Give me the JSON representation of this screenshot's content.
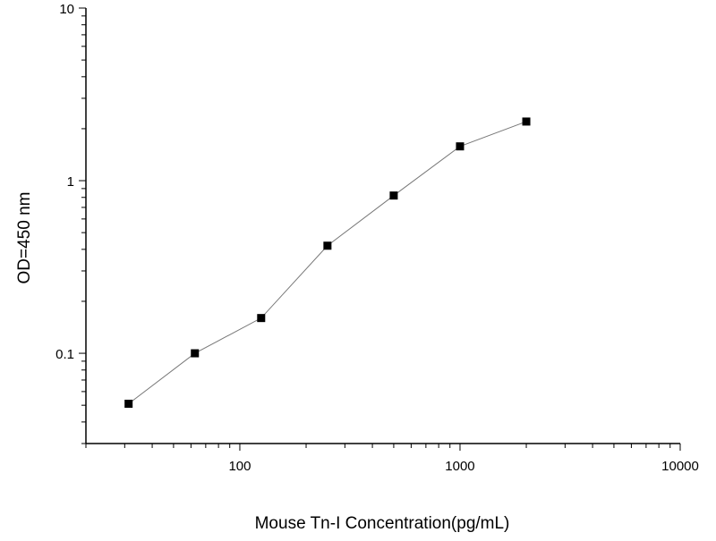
{
  "chart_data": {
    "type": "line",
    "title": "",
    "xlabel": "Mouse Tn-I  Concentration(pg/mL)",
    "ylabel": "OD=450 nm",
    "xscale": "log",
    "yscale": "log",
    "xlim": [
      20,
      10000
    ],
    "ylim": [
      0.03,
      10
    ],
    "x_ticks": [
      {
        "value": 100,
        "label": "100"
      },
      {
        "value": 1000,
        "label": "1000"
      },
      {
        "value": 10000,
        "label": "10000"
      }
    ],
    "y_ticks": [
      {
        "value": 0.1,
        "label": "0.1"
      },
      {
        "value": 1,
        "label": "1"
      },
      {
        "value": 10,
        "label": "10"
      }
    ],
    "grid": false,
    "legend": "none",
    "marker": "square",
    "series": [
      {
        "color": "#000000",
        "x": [
          31.25,
          62.5,
          125,
          250,
          500,
          1000,
          2000
        ],
        "y": [
          0.051,
          0.1,
          0.16,
          0.42,
          0.82,
          1.58,
          2.2
        ]
      }
    ]
  }
}
